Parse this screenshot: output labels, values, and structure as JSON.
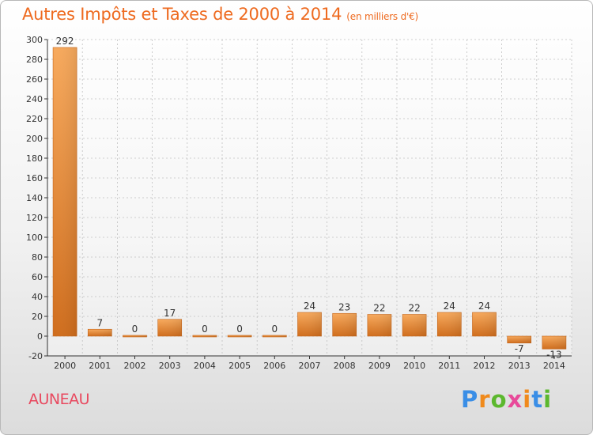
{
  "title": "Autres Impôts et Taxes de 2000 à 2014",
  "subtitle": "(en milliers d'€)",
  "commune": "AUNEAU",
  "logo": {
    "letters": [
      "P",
      "r",
      "o",
      "x",
      "i",
      "t",
      "i"
    ]
  },
  "colors": {
    "bar": "#f39c4a",
    "bar_dark": "#d8711e",
    "title": "#ee6a1f",
    "commune": "#e8495f",
    "axis": "#333333",
    "grid": "#c0c0c0"
  },
  "chart_data": {
    "type": "bar",
    "title": "Autres Impôts et Taxes de 2000 à 2014",
    "ylabel": "",
    "xlabel": "",
    "categories": [
      "2000",
      "2001",
      "2002",
      "2003",
      "2004",
      "2005",
      "2006",
      "2007",
      "2008",
      "2009",
      "2010",
      "2011",
      "2012",
      "2013",
      "2014"
    ],
    "values": [
      292,
      7,
      0,
      17,
      0,
      0,
      0,
      24,
      23,
      22,
      22,
      24,
      24,
      -7,
      -13
    ],
    "data_labels": [
      "292",
      "7",
      "0",
      "17",
      "0",
      "0",
      "0",
      "24",
      "23",
      "22",
      "22",
      "24",
      "24",
      "-7",
      "-13"
    ],
    "ylim": [
      -20,
      300
    ],
    "yticks": [
      -20,
      0,
      20,
      40,
      60,
      80,
      100,
      120,
      140,
      160,
      180,
      200,
      220,
      240,
      260,
      280,
      300
    ],
    "grid": true
  }
}
